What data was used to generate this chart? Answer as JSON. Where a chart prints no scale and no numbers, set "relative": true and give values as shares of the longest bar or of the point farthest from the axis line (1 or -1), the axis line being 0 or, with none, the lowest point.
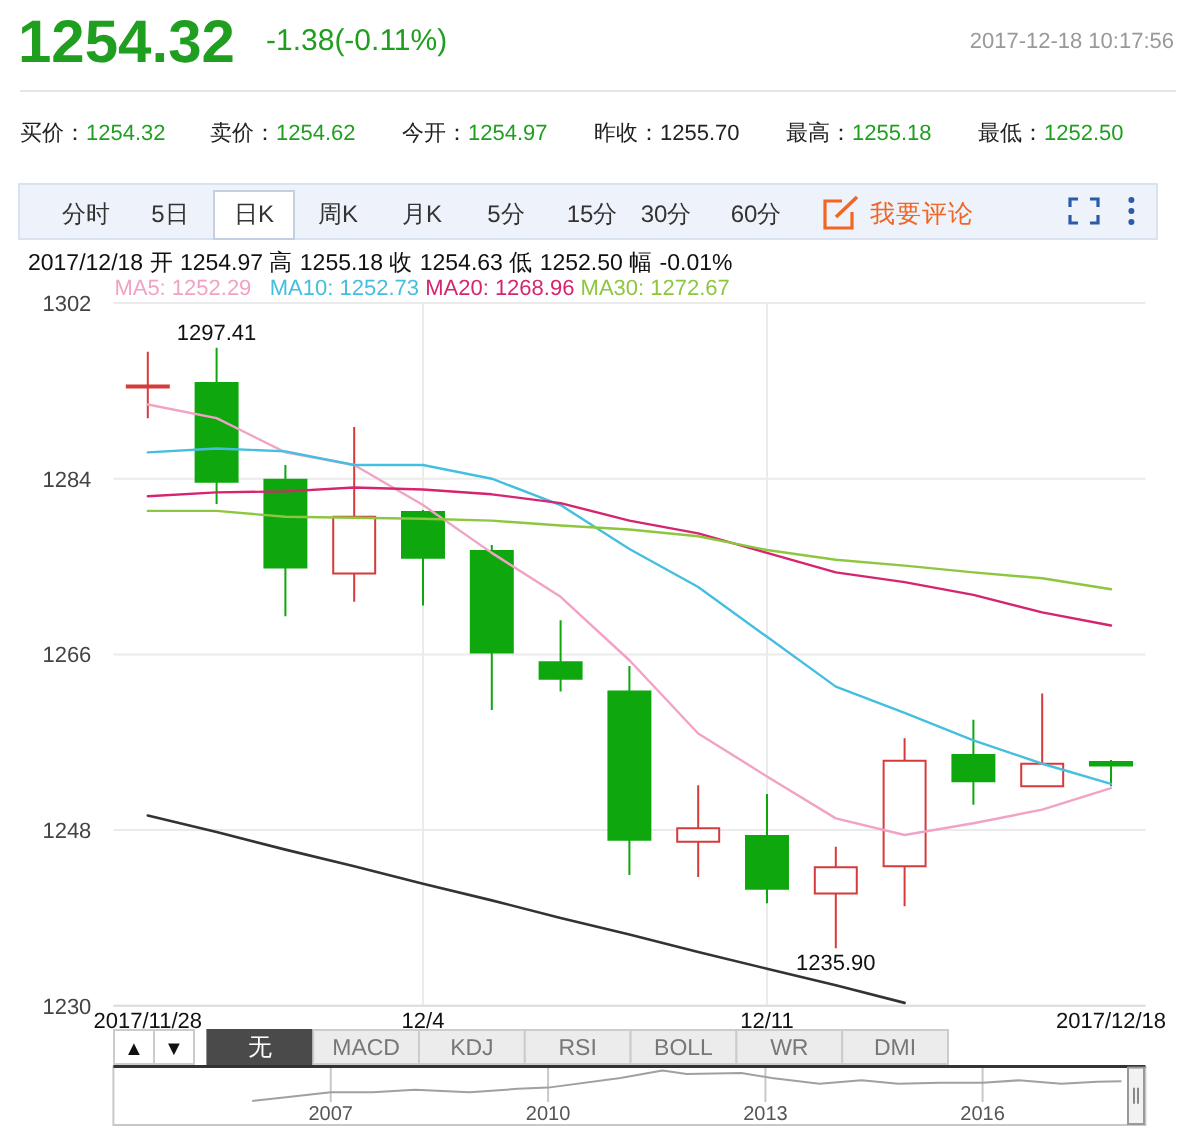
{
  "chart_data": [
    {
      "type": "candlestick",
      "title": "1254.32",
      "subtitle": "-1.38(-0.11%)",
      "categories": [
        "2017/11/28",
        null,
        null,
        null,
        "12/4",
        null,
        null,
        null,
        null,
        "12/11",
        null,
        null,
        null,
        null,
        "2017/12/18"
      ],
      "ohlc": [
        [
          1293.4,
          1297.0,
          1290.2,
          1293.5
        ],
        [
          1293.8,
          1297.41,
          1281.4,
          1283.7
        ],
        [
          1283.9,
          1285.4,
          1269.9,
          1274.9
        ],
        [
          1274.3,
          1289.3,
          1271.4,
          1280.1
        ],
        [
          1280.6,
          1280.8,
          1271.0,
          1275.9
        ],
        [
          1276.6,
          1277.2,
          1260.3,
          1266.2
        ],
        [
          1265.2,
          1269.5,
          1262.2,
          1263.5
        ],
        [
          1262.2,
          1264.8,
          1243.4,
          1247.0
        ],
        [
          1246.8,
          1252.6,
          1243.2,
          1248.2
        ],
        [
          1247.4,
          1251.7,
          1240.5,
          1242.0
        ],
        [
          1241.5,
          1246.3,
          1235.9,
          1244.2
        ],
        [
          1244.3,
          1257.4,
          1240.2,
          1255.1
        ],
        [
          1255.7,
          1259.3,
          1250.6,
          1253.0
        ],
        [
          1252.5,
          1262.0,
          1252.5,
          1254.8
        ],
        [
          1254.97,
          1255.18,
          1252.5,
          1254.63
        ]
      ],
      "colors": [
        "#d63b3b",
        "#0ea80e",
        "#0ea80e",
        "#d63b3b",
        "#0ea80e",
        "#0ea80e",
        "#0ea80e",
        "#0ea80e",
        "#d63b3b",
        "#0ea80e",
        "#d63b3b",
        "#d63b3b",
        "#0ea80e",
        "#d63b3b",
        "#0ea80e"
      ],
      "series": [
        {
          "type": "line",
          "name": "MA5: 1252.29",
          "color": "#f2a2c4",
          "values": [
            1291.6,
            1290.2,
            1286.7,
            1285.4,
            1281.3,
            1276.4,
            1271.9,
            1265.4,
            1257.9,
            1253.5,
            1249.2,
            1247.5,
            1248.7,
            1250.1,
            1252.29
          ]
        },
        {
          "type": "line",
          "name": "MA10: 1252.73",
          "color": "#45bfdf",
          "values": [
            1286.7,
            1287.1,
            1286.8,
            1285.4,
            1285.4,
            1284.0,
            1281.3,
            1276.8,
            1272.9,
            1267.8,
            1262.7,
            1260.0,
            1257.2,
            1254.8,
            1252.73
          ]
        },
        {
          "type": "line",
          "name": "MA20: 1268.96",
          "color": "#d6246e",
          "values": [
            1282.2,
            1282.6,
            1282.7,
            1283.1,
            1282.9,
            1282.4,
            1281.5,
            1279.7,
            1278.4,
            1276.4,
            1274.4,
            1273.4,
            1272.1,
            1270.3,
            1268.96
          ]
        },
        {
          "type": "line",
          "name": "MA30: 1272.67",
          "color": "#8dc63f",
          "values": [
            1280.7,
            1280.7,
            1280.1,
            1280.0,
            1279.9,
            1279.7,
            1279.2,
            1278.8,
            1278.1,
            1276.7,
            1275.7,
            1275.1,
            1274.4,
            1273.8,
            1272.67
          ]
        },
        {
          "type": "line",
          "color": "#333333",
          "values": [
            1249.5,
            1247.8,
            1246.0,
            1244.3,
            1242.5,
            1240.8,
            1239.0,
            1237.3,
            1235.5,
            1233.8,
            1232.1,
            1230.3,
            null,
            null,
            null
          ]
        }
      ],
      "ylim": [
        1230,
        1302
      ],
      "yticks": [
        1230,
        1248,
        1266,
        1284,
        1302
      ],
      "grid": true,
      "legend": "top left",
      "annotations": [
        "2017-12-18 10:17:56",
        "买价：1254.32",
        "卖价：1254.62",
        "今开：1254.97",
        "昨收：1255.70",
        "最高：1255.18",
        "最低：1252.50",
        "分时",
        "5日",
        "日K",
        "周K",
        "月K",
        "5分",
        "15分",
        "30分",
        "60分",
        "我要评论",
        "2017/12/18 开 1254.97 高 1255.18 收 1254.63 低 1252.50 幅 -0.01%",
        {
          "text": "1297.41",
          "y": 1297.41
        },
        {
          "text": "1235.90",
          "y": 1235.9
        }
      ]
    },
    {
      "type": "line",
      "x": [
        "2005-12",
        "2006-06",
        "2007-01",
        "2007-08",
        "2008-03",
        "2008-12",
        "2009-08",
        "2010-01",
        "2011-01",
        "2011-08",
        "2011-12",
        "2012-09",
        "2013-02",
        "2013-10",
        "2014-05",
        "2014-11",
        "2015-06",
        "2016-01",
        "2016-07",
        "2017-02",
        "2017-08",
        "2017-12"
      ],
      "values": [
        0,
        0.13,
        0.29,
        0.29,
        0.37,
        0.29,
        0.4,
        0.44,
        0.76,
        1,
        0.89,
        0.92,
        0.76,
        0.57,
        0.68,
        0.57,
        0.6,
        0.6,
        0.68,
        0.57,
        0.63,
        0.65
      ],
      "color": "#a0a0a0",
      "relative": true,
      "xlim": [
        "2004-01",
        "2018-04"
      ],
      "xticks": [
        {
          "value": "2007",
          "label": "2007"
        },
        {
          "value": "2010",
          "label": "2010"
        },
        {
          "value": "2013",
          "label": "2013"
        },
        {
          "value": "2016",
          "label": "2016"
        }
      ],
      "grid": "x",
      "annotations": [
        "▲",
        "▼",
        "无",
        "MACD",
        "KDJ",
        "RSI",
        "BOLL",
        "WR",
        "DMI"
      ]
    }
  ]
}
